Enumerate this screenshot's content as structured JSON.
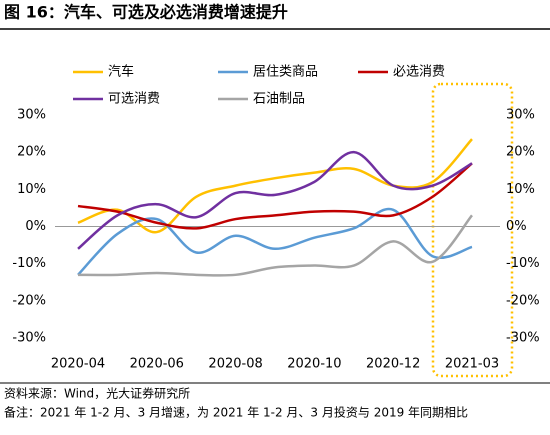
{
  "chart_data": {
    "type": "line",
    "title": "图 16：汽车、可选及必选消费增速提升",
    "categories": [
      "2020-04",
      null,
      "2020-06",
      null,
      "2020-08",
      null,
      "2020-10",
      null,
      "2020-12",
      null,
      "2021-03"
    ],
    "series": [
      {
        "name": "汽车",
        "color": "#FFC000",
        "values": [
          1,
          4.5,
          -1.5,
          8,
          11,
          13,
          14.5,
          15.5,
          11,
          12,
          23.5
        ]
      },
      {
        "name": "居住类商品",
        "color": "#5B9BD5",
        "values": [
          -13,
          -2,
          2,
          -7,
          -2.5,
          -6,
          -3,
          -0.5,
          4.5,
          -8,
          -5.5
        ]
      },
      {
        "name": "必选消费",
        "color": "#C00000",
        "values": [
          5.5,
          4,
          1,
          -0.5,
          2,
          3,
          4,
          4,
          3,
          8,
          17
        ]
      },
      {
        "name": "可选消费",
        "color": "#7030A0",
        "values": [
          -6,
          3,
          6,
          2.5,
          9,
          8.5,
          12,
          20,
          11,
          11,
          17
        ]
      },
      {
        "name": "石油制品",
        "color": "#A5A5A5",
        "values": [
          -13,
          -13,
          -12.5,
          -13,
          -13,
          -11,
          -10.5,
          -10.5,
          -4,
          -9.5,
          3
        ]
      }
    ],
    "ylim": [
      -30,
      30
    ],
    "yticks": [
      {
        "value": 30,
        "label": "30%"
      },
      {
        "value": 20,
        "label": "20%"
      },
      {
        "value": 10,
        "label": "10%"
      },
      {
        "value": 0,
        "label": "0%"
      },
      {
        "value": -10,
        "label": "-10%"
      },
      {
        "value": -20,
        "label": "-20%"
      },
      {
        "value": -30,
        "label": "-30%"
      }
    ],
    "y2lim": [
      -30,
      30
    ],
    "y2ticks": [
      {
        "value": 30,
        "label": "30%"
      },
      {
        "value": 20,
        "label": "20%"
      },
      {
        "value": 10,
        "label": "10%"
      },
      {
        "value": 0,
        "label": "0%"
      },
      {
        "value": -10,
        "label": "-10%"
      },
      {
        "value": -20,
        "label": "-20%"
      },
      {
        "value": -30,
        "label": "-30%"
      }
    ],
    "grid": false,
    "source": "资料来源：Wind，光大证券研究所",
    "note": "备注：2021 年 1-2 月、3 月增速，为 2021 年 1-2 月、3 月投资与 2019 年同期相比"
  }
}
